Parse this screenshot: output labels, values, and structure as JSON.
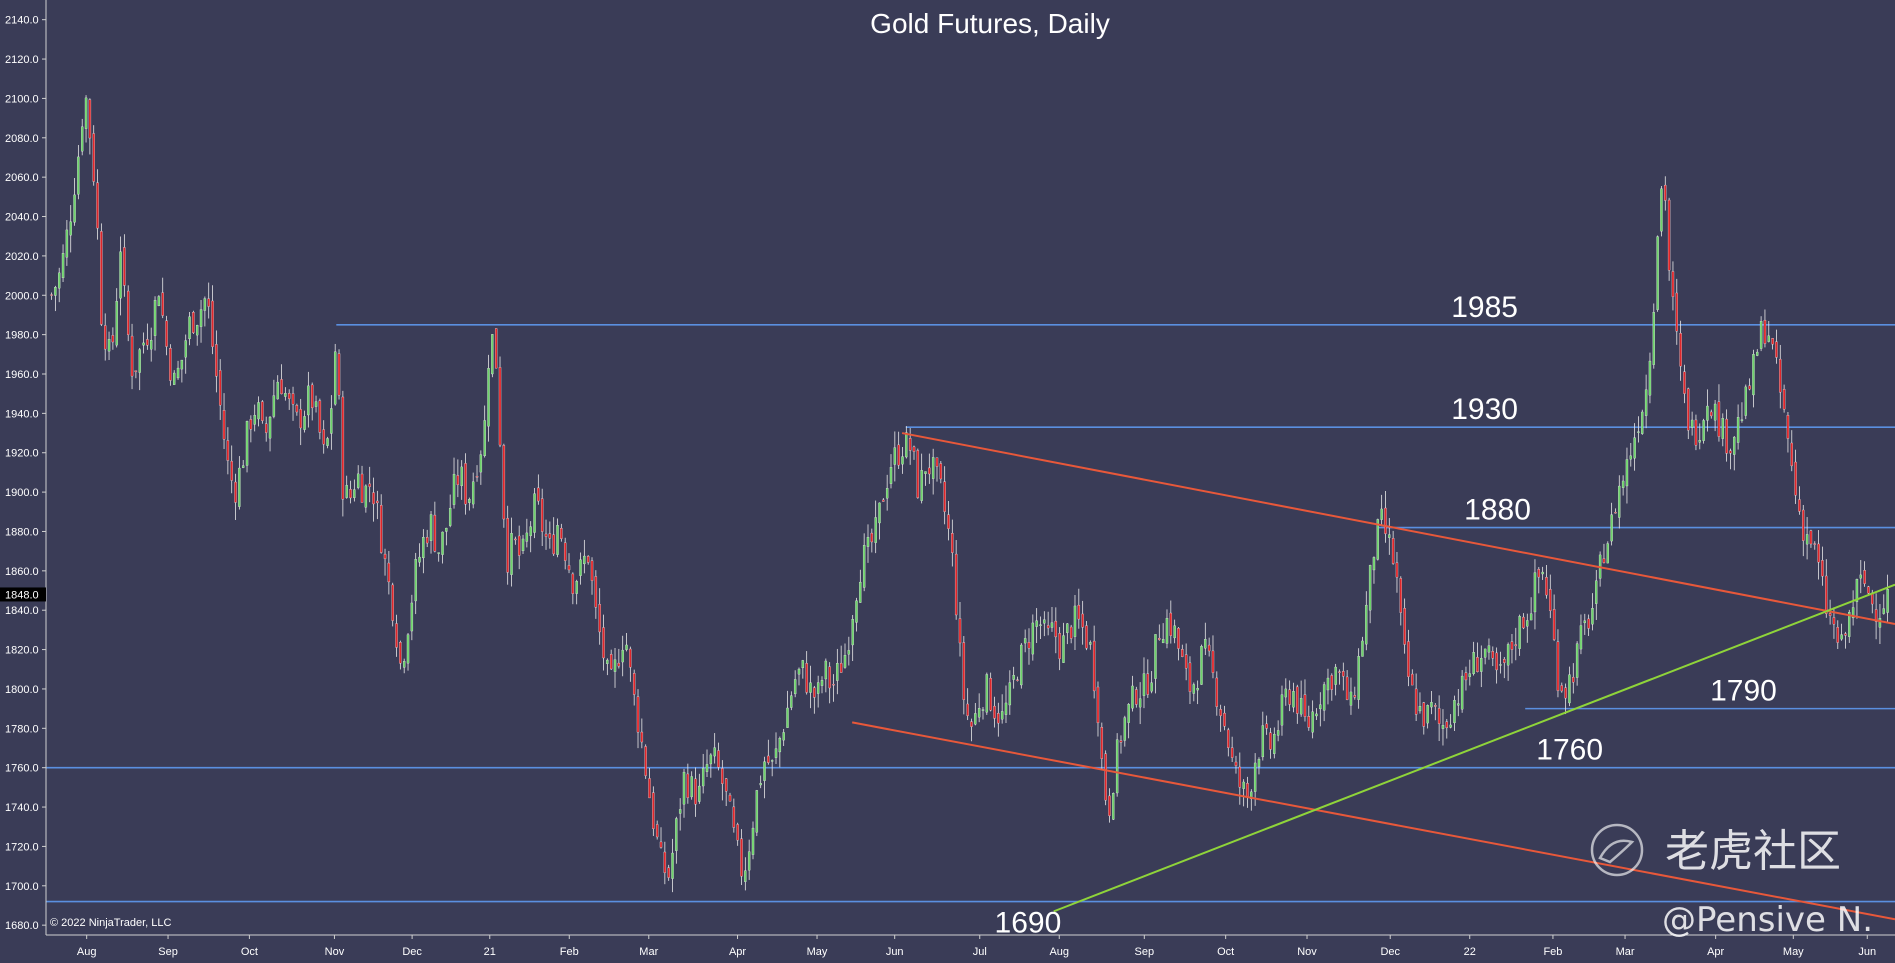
{
  "chart_data": {
    "type": "candlestick",
    "title": "Gold Futures, Daily",
    "ylim": [
      1675,
      2150
    ],
    "y_ticks": [
      1680,
      1700,
      1720,
      1740,
      1760,
      1780,
      1800,
      1820,
      1840,
      1860,
      1880,
      1900,
      1920,
      1940,
      1960,
      1980,
      2000,
      2020,
      2040,
      2060,
      2080,
      2100,
      2120,
      2140
    ],
    "y_tick_labels": [
      "1680.0",
      "1700.0",
      "1720.0",
      "1740.0",
      "1760.0",
      "1780.0",
      "1800.0",
      "1820.0",
      "1840.0",
      "1860.0",
      "1880.0",
      "1900.0",
      "1920.0",
      "1940.0",
      "1960.0",
      "1980.0",
      "2000.0",
      "2020.0",
      "2040.0",
      "2060.0",
      "2080.0",
      "2100.0",
      "2120.0",
      "2140.0"
    ],
    "x_ticks": [
      {
        "label": "Aug",
        "t": 0.022
      },
      {
        "label": "Sep",
        "t": 0.066
      },
      {
        "label": "Oct",
        "t": 0.11
      },
      {
        "label": "Nov",
        "t": 0.156
      },
      {
        "label": "Dec",
        "t": 0.198
      },
      {
        "label": "21",
        "t": 0.24
      },
      {
        "label": "Feb",
        "t": 0.283
      },
      {
        "label": "Mar",
        "t": 0.326
      },
      {
        "label": "Apr",
        "t": 0.374
      },
      {
        "label": "May",
        "t": 0.417
      },
      {
        "label": "Jun",
        "t": 0.459
      },
      {
        "label": "Jul",
        "t": 0.505
      },
      {
        "label": "Aug",
        "t": 0.548
      },
      {
        "label": "Sep",
        "t": 0.594
      },
      {
        "label": "Oct",
        "t": 0.638
      },
      {
        "label": "Nov",
        "t": 0.682
      },
      {
        "label": "Dec",
        "t": 0.727
      },
      {
        "label": "22",
        "t": 0.77
      },
      {
        "label": "Feb",
        "t": 0.815
      },
      {
        "label": "Mar",
        "t": 0.854
      },
      {
        "label": "Apr",
        "t": 0.903
      },
      {
        "label": "May",
        "t": 0.945
      },
      {
        "label": "Jun",
        "t": 0.985
      }
    ],
    "price_path": [
      [
        0.003,
        2000
      ],
      [
        0.008,
        2012
      ],
      [
        0.013,
        2040
      ],
      [
        0.018,
        2075
      ],
      [
        0.021,
        2105
      ],
      [
        0.024,
        2080
      ],
      [
        0.027,
        2050
      ],
      [
        0.03,
        1990
      ],
      [
        0.034,
        1970
      ],
      [
        0.037,
        1980
      ],
      [
        0.04,
        2030
      ],
      [
        0.043,
        1990
      ],
      [
        0.047,
        1960
      ],
      [
        0.052,
        1975
      ],
      [
        0.057,
        1985
      ],
      [
        0.061,
        2005
      ],
      [
        0.065,
        1975
      ],
      [
        0.069,
        1955
      ],
      [
        0.073,
        1965
      ],
      [
        0.077,
        1985
      ],
      [
        0.082,
        1990
      ],
      [
        0.087,
        2000
      ],
      [
        0.09,
        1975
      ],
      [
        0.094,
        1945
      ],
      [
        0.098,
        1915
      ],
      [
        0.102,
        1900
      ],
      [
        0.106,
        1915
      ],
      [
        0.11,
        1935
      ],
      [
        0.114,
        1945
      ],
      [
        0.118,
        1925
      ],
      [
        0.122,
        1945
      ],
      [
        0.126,
        1960
      ],
      [
        0.131,
        1945
      ],
      [
        0.135,
        1935
      ],
      [
        0.139,
        1940
      ],
      [
        0.143,
        1950
      ],
      [
        0.147,
        1935
      ],
      [
        0.151,
        1915
      ],
      [
        0.154,
        1940
      ],
      [
        0.157,
        1980
      ],
      [
        0.16,
        1905
      ],
      [
        0.164,
        1895
      ],
      [
        0.168,
        1910
      ],
      [
        0.172,
        1900
      ],
      [
        0.176,
        1905
      ],
      [
        0.18,
        1885
      ],
      [
        0.184,
        1860
      ],
      [
        0.188,
        1840
      ],
      [
        0.192,
        1810
      ],
      [
        0.196,
        1835
      ],
      [
        0.2,
        1860
      ],
      [
        0.204,
        1875
      ],
      [
        0.208,
        1885
      ],
      [
        0.212,
        1870
      ],
      [
        0.216,
        1880
      ],
      [
        0.22,
        1900
      ],
      [
        0.224,
        1910
      ],
      [
        0.228,
        1895
      ],
      [
        0.233,
        1915
      ],
      [
        0.237,
        1930
      ],
      [
        0.24,
        1980
      ],
      [
        0.243,
        1975
      ],
      [
        0.246,
        1920
      ],
      [
        0.249,
        1865
      ],
      [
        0.253,
        1875
      ],
      [
        0.257,
        1865
      ],
      [
        0.261,
        1880
      ],
      [
        0.265,
        1895
      ],
      [
        0.269,
        1880
      ],
      [
        0.273,
        1870
      ],
      [
        0.277,
        1885
      ],
      [
        0.281,
        1870
      ],
      [
        0.285,
        1855
      ],
      [
        0.289,
        1860
      ],
      [
        0.293,
        1870
      ],
      [
        0.297,
        1840
      ],
      [
        0.301,
        1820
      ],
      [
        0.305,
        1800
      ],
      [
        0.309,
        1815
      ],
      [
        0.313,
        1830
      ],
      [
        0.317,
        1800
      ],
      [
        0.321,
        1780
      ],
      [
        0.325,
        1755
      ],
      [
        0.329,
        1730
      ],
      [
        0.333,
        1710
      ],
      [
        0.337,
        1705
      ],
      [
        0.341,
        1730
      ],
      [
        0.345,
        1755
      ],
      [
        0.349,
        1750
      ],
      [
        0.353,
        1745
      ],
      [
        0.357,
        1760
      ],
      [
        0.361,
        1765
      ],
      [
        0.365,
        1755
      ],
      [
        0.369,
        1740
      ],
      [
        0.373,
        1720
      ],
      [
        0.377,
        1705
      ],
      [
        0.381,
        1725
      ],
      [
        0.385,
        1750
      ],
      [
        0.389,
        1765
      ],
      [
        0.393,
        1760
      ],
      [
        0.397,
        1775
      ],
      [
        0.401,
        1790
      ],
      [
        0.405,
        1805
      ],
      [
        0.409,
        1810
      ],
      [
        0.413,
        1800
      ],
      [
        0.417,
        1795
      ],
      [
        0.421,
        1810
      ],
      [
        0.425,
        1800
      ],
      [
        0.429,
        1810
      ],
      [
        0.433,
        1820
      ],
      [
        0.437,
        1845
      ],
      [
        0.441,
        1865
      ],
      [
        0.445,
        1870
      ],
      [
        0.449,
        1880
      ],
      [
        0.453,
        1900
      ],
      [
        0.457,
        1915
      ],
      [
        0.461,
        1920
      ],
      [
        0.464,
        1925
      ],
      [
        0.468,
        1922
      ],
      [
        0.472,
        1900
      ],
      [
        0.476,
        1915
      ],
      [
        0.48,
        1910
      ],
      [
        0.484,
        1900
      ],
      [
        0.488,
        1880
      ],
      [
        0.491,
        1860
      ],
      [
        0.494,
        1820
      ],
      [
        0.497,
        1790
      ],
      [
        0.501,
        1780
      ],
      [
        0.505,
        1795
      ],
      [
        0.509,
        1800
      ],
      [
        0.513,
        1790
      ],
      [
        0.517,
        1785
      ],
      [
        0.521,
        1795
      ],
      [
        0.525,
        1810
      ],
      [
        0.529,
        1820
      ],
      [
        0.533,
        1830
      ],
      [
        0.537,
        1835
      ],
      [
        0.541,
        1825
      ],
      [
        0.545,
        1830
      ],
      [
        0.549,
        1820
      ],
      [
        0.553,
        1830
      ],
      [
        0.557,
        1835
      ],
      [
        0.561,
        1830
      ],
      [
        0.565,
        1820
      ],
      [
        0.569,
        1790
      ],
      [
        0.572,
        1750
      ],
      [
        0.575,
        1740
      ],
      [
        0.578,
        1760
      ],
      [
        0.582,
        1780
      ],
      [
        0.586,
        1790
      ],
      [
        0.59,
        1800
      ],
      [
        0.594,
        1800
      ],
      [
        0.598,
        1810
      ],
      [
        0.602,
        1830
      ],
      [
        0.606,
        1835
      ],
      [
        0.61,
        1830
      ],
      [
        0.614,
        1815
      ],
      [
        0.618,
        1800
      ],
      [
        0.622,
        1805
      ],
      [
        0.626,
        1820
      ],
      [
        0.63,
        1810
      ],
      [
        0.634,
        1795
      ],
      [
        0.638,
        1780
      ],
      [
        0.642,
        1760
      ],
      [
        0.646,
        1750
      ],
      [
        0.65,
        1745
      ],
      [
        0.654,
        1765
      ],
      [
        0.658,
        1775
      ],
      [
        0.662,
        1770
      ],
      [
        0.666,
        1780
      ],
      [
        0.67,
        1795
      ],
      [
        0.674,
        1800
      ],
      [
        0.678,
        1790
      ],
      [
        0.682,
        1780
      ],
      [
        0.686,
        1790
      ],
      [
        0.69,
        1800
      ],
      [
        0.694,
        1805
      ],
      [
        0.698,
        1810
      ],
      [
        0.702,
        1800
      ],
      [
        0.706,
        1790
      ],
      [
        0.71,
        1815
      ],
      [
        0.714,
        1840
      ],
      [
        0.718,
        1870
      ],
      [
        0.722,
        1885
      ],
      [
        0.726,
        1875
      ],
      [
        0.73,
        1860
      ],
      [
        0.734,
        1820
      ],
      [
        0.738,
        1800
      ],
      [
        0.742,
        1790
      ],
      [
        0.746,
        1785
      ],
      [
        0.75,
        1790
      ],
      [
        0.754,
        1780
      ],
      [
        0.758,
        1785
      ],
      [
        0.762,
        1795
      ],
      [
        0.766,
        1800
      ],
      [
        0.77,
        1810
      ],
      [
        0.774,
        1815
      ],
      [
        0.778,
        1820
      ],
      [
        0.782,
        1810
      ],
      [
        0.786,
        1805
      ],
      [
        0.79,
        1815
      ],
      [
        0.794,
        1825
      ],
      [
        0.798,
        1835
      ],
      [
        0.802,
        1840
      ],
      [
        0.806,
        1855
      ],
      [
        0.81,
        1860
      ],
      [
        0.814,
        1835
      ],
      [
        0.818,
        1805
      ],
      [
        0.822,
        1800
      ],
      [
        0.826,
        1810
      ],
      [
        0.83,
        1825
      ],
      [
        0.834,
        1835
      ],
      [
        0.838,
        1845
      ],
      [
        0.842,
        1870
      ],
      [
        0.846,
        1880
      ],
      [
        0.85,
        1900
      ],
      [
        0.854,
        1910
      ],
      [
        0.858,
        1925
      ],
      [
        0.862,
        1940
      ],
      [
        0.866,
        1955
      ],
      [
        0.869,
        1990
      ],
      [
        0.872,
        2040
      ],
      [
        0.875,
        2065
      ],
      [
        0.878,
        2010
      ],
      [
        0.881,
        1985
      ],
      [
        0.884,
        1960
      ],
      [
        0.887,
        1940
      ],
      [
        0.891,
        1930
      ],
      [
        0.895,
        1935
      ],
      [
        0.899,
        1950
      ],
      [
        0.903,
        1940
      ],
      [
        0.907,
        1930
      ],
      [
        0.911,
        1925
      ],
      [
        0.915,
        1935
      ],
      [
        0.919,
        1945
      ],
      [
        0.923,
        1960
      ],
      [
        0.927,
        1980
      ],
      [
        0.931,
        1985
      ],
      [
        0.935,
        1965
      ],
      [
        0.939,
        1945
      ],
      [
        0.943,
        1920
      ],
      [
        0.947,
        1895
      ],
      [
        0.951,
        1880
      ],
      [
        0.955,
        1875
      ],
      [
        0.959,
        1860
      ],
      [
        0.963,
        1840
      ],
      [
        0.967,
        1830
      ],
      [
        0.971,
        1820
      ],
      [
        0.975,
        1835
      ],
      [
        0.979,
        1850
      ],
      [
        0.983,
        1855
      ],
      [
        0.987,
        1845
      ],
      [
        0.991,
        1840
      ],
      [
        0.996,
        1848
      ]
    ],
    "levels": [
      {
        "value": 1985,
        "t_from": 0.157,
        "t_to": 1.0,
        "label": "1985",
        "label_t": 0.76
      },
      {
        "value": 1933,
        "t_from": 0.465,
        "t_to": 1.0,
        "label": "1930",
        "label_t": 0.76
      },
      {
        "value": 1882,
        "t_from": 0.72,
        "t_to": 1.0,
        "label": "1880",
        "label_t": 0.767
      },
      {
        "value": 1790,
        "t_from": 0.8,
        "t_to": 1.0,
        "label": "1790",
        "label_t": 0.9
      },
      {
        "value": 1760,
        "t_from": 0.0,
        "t_to": 1.0,
        "label": "1760",
        "label_t": 0.806
      },
      {
        "value": 1692,
        "t_from": 0.0,
        "t_to": 1.0,
        "label": "1690",
        "label_t": 0.513
      }
    ],
    "trendlines": [
      {
        "t1": 0.463,
        "v1": 1930,
        "t2": 1.0,
        "v2": 1833,
        "color": "#e8583a"
      },
      {
        "t1": 0.436,
        "v1": 1783,
        "t2": 1.0,
        "v2": 1683,
        "color": "#e8583a"
      },
      {
        "t1": 0.545,
        "v1": 1687,
        "t2": 1.0,
        "v2": 1853,
        "color": "#8fd43a"
      }
    ],
    "current_price": 1848.0,
    "current_price_label": "1848.0",
    "colors": {
      "background": "#3a3c57",
      "up": "#6dd36a",
      "down": "#e0262a",
      "level": "#5a8fe0",
      "axis": "#d0d0d0"
    }
  },
  "copyright": "© 2022 NinjaTrader, LLC",
  "watermark": {
    "brand_text": "老虎社区",
    "handle_text": "@Pensive N."
  }
}
